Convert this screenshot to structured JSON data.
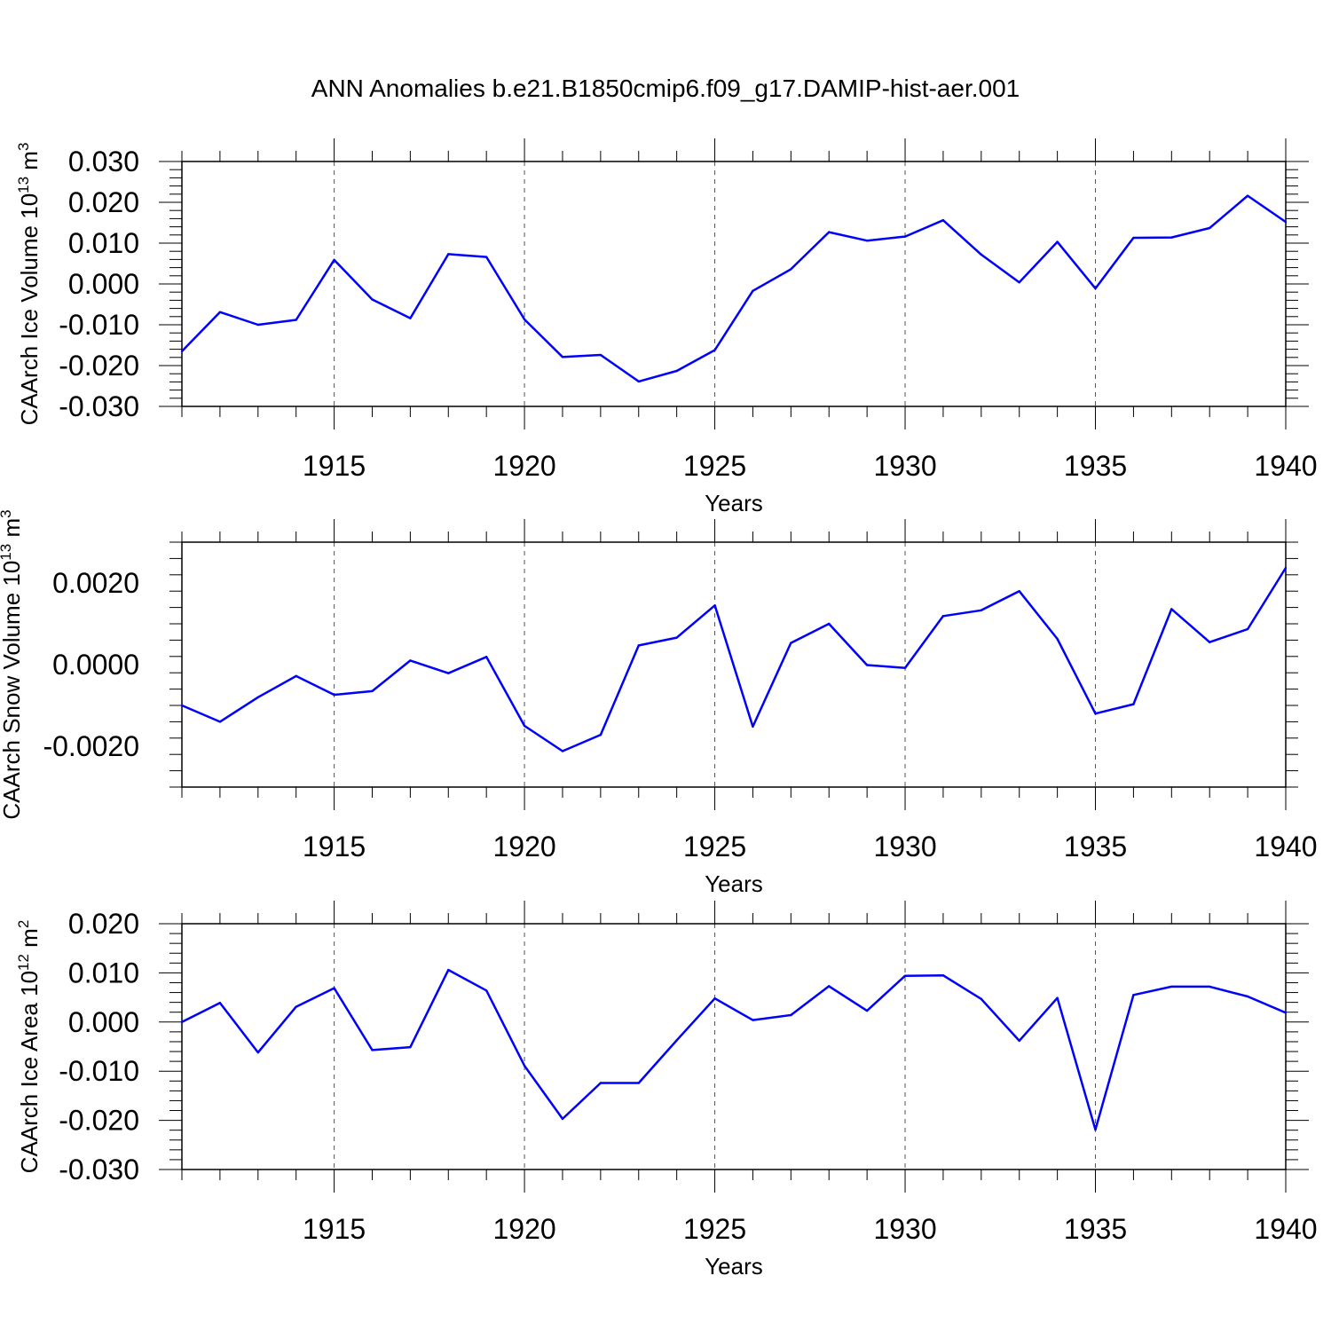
{
  "title": "ANN Anomalies b.e21.B1850cmip6.f09_g17.DAMIP-hist-aer.001",
  "colors": {
    "line": "#0000ff",
    "axis": "#000000",
    "grid": "#555555"
  },
  "chart_data": [
    {
      "type": "line",
      "ylabel_main": "CAArch Ice Volume 10",
      "ylabel_sup": "13",
      "ylabel_unit": " m",
      "ylabel_unit_sup": "3",
      "xlabel": "Years",
      "xlim": [
        1911,
        1940
      ],
      "ylim": [
        -0.03,
        0.03
      ],
      "xticks": [
        "1915",
        "1920",
        "1925",
        "1930",
        "1935",
        "1940"
      ],
      "yticks": [
        {
          "v": 0.03,
          "label": "0.030"
        },
        {
          "v": 0.02,
          "label": "0.020"
        },
        {
          "v": 0.01,
          "label": "0.010"
        },
        {
          "v": 0.0,
          "label": "0.000"
        },
        {
          "v": -0.01,
          "label": "-0.010"
        },
        {
          "v": -0.02,
          "label": "-0.020"
        },
        {
          "v": -0.03,
          "label": "-0.030"
        }
      ],
      "grid": "vertical-dashed",
      "x": [
        1911,
        1912,
        1913,
        1914,
        1915,
        1916,
        1917,
        1918,
        1919,
        1920,
        1921,
        1922,
        1923,
        1924,
        1925,
        1926,
        1927,
        1928,
        1929,
        1930,
        1931,
        1932,
        1933,
        1934,
        1935,
        1936,
        1937,
        1938,
        1939,
        1940
      ],
      "values": [
        -0.0165,
        -0.0069,
        -0.01,
        -0.0088,
        0.0059,
        -0.0038,
        -0.0084,
        0.0073,
        0.0066,
        -0.0087,
        -0.0179,
        -0.0174,
        -0.0239,
        -0.0213,
        -0.0162,
        -0.0017,
        0.0036,
        0.0127,
        0.0106,
        0.0116,
        0.0156,
        0.0072,
        0.0004,
        0.0103,
        -0.0011,
        0.0113,
        0.0114,
        0.0137,
        0.0216,
        0.0152
      ]
    },
    {
      "type": "line",
      "ylabel_main": "CAArch Snow Volume 10",
      "ylabel_sup": "13",
      "ylabel_unit": " m",
      "ylabel_unit_sup": "3",
      "xlabel": "Years",
      "xlim": [
        1911,
        1940
      ],
      "ylim": [
        -0.003,
        0.003
      ],
      "xticks": [
        "1915",
        "1920",
        "1925",
        "1930",
        "1935",
        "1940"
      ],
      "yticks": [
        {
          "v": 0.002,
          "label": "0.0020"
        },
        {
          "v": 0.0,
          "label": "0.0000"
        },
        {
          "v": -0.002,
          "label": "-0.0020"
        }
      ],
      "grid": "vertical-dashed",
      "x": [
        1911,
        1912,
        1913,
        1914,
        1915,
        1916,
        1917,
        1918,
        1919,
        1920,
        1921,
        1922,
        1923,
        1924,
        1925,
        1926,
        1927,
        1928,
        1929,
        1930,
        1931,
        1932,
        1933,
        1934,
        1935,
        1936,
        1937,
        1938,
        1939,
        1940
      ],
      "values": [
        -0.001,
        -0.0014,
        -0.0008,
        -0.00028,
        -0.00074,
        -0.00065,
        0.0001,
        -0.00021,
        0.00019,
        -0.0015,
        -0.00212,
        -0.00172,
        0.00047,
        0.00066,
        0.00145,
        -0.00152,
        0.00053,
        0.001,
        -1e-05,
        -8e-05,
        0.00119,
        0.00133,
        0.0018,
        0.00063,
        -0.0012,
        -0.00097,
        0.00136,
        0.00055,
        0.00087,
        0.00237
      ]
    },
    {
      "type": "line",
      "ylabel_main": "CAArch Ice Area 10",
      "ylabel_sup": "12",
      "ylabel_unit": " m",
      "ylabel_unit_sup": "2",
      "xlabel": "Years",
      "xlim": [
        1911,
        1940
      ],
      "ylim": [
        -0.03,
        0.02
      ],
      "xticks": [
        "1915",
        "1920",
        "1925",
        "1930",
        "1935",
        "1940"
      ],
      "yticks": [
        {
          "v": 0.02,
          "label": "0.020"
        },
        {
          "v": 0.01,
          "label": "0.010"
        },
        {
          "v": 0.0,
          "label": "0.000"
        },
        {
          "v": -0.01,
          "label": "-0.010"
        },
        {
          "v": -0.02,
          "label": "-0.020"
        },
        {
          "v": -0.03,
          "label": "-0.030"
        }
      ],
      "grid": "vertical-dashed",
      "x": [
        1911,
        1912,
        1913,
        1914,
        1915,
        1916,
        1917,
        1918,
        1919,
        1920,
        1921,
        1922,
        1923,
        1924,
        1925,
        1926,
        1927,
        1928,
        1929,
        1930,
        1931,
        1932,
        1933,
        1934,
        1935,
        1936,
        1937,
        1938,
        1939,
        1940
      ],
      "values": [
        0.0,
        0.0039,
        -0.0062,
        0.0031,
        0.0069,
        -0.0057,
        -0.0051,
        0.0106,
        0.0064,
        -0.0089,
        -0.0197,
        -0.0124,
        -0.0124,
        -0.0037,
        0.0048,
        0.0004,
        0.0014,
        0.0073,
        0.0023,
        0.0094,
        0.0095,
        0.0047,
        -0.0038,
        0.0049,
        -0.0219,
        0.0055,
        0.0072,
        0.0072,
        0.0052,
        0.0019
      ]
    }
  ]
}
